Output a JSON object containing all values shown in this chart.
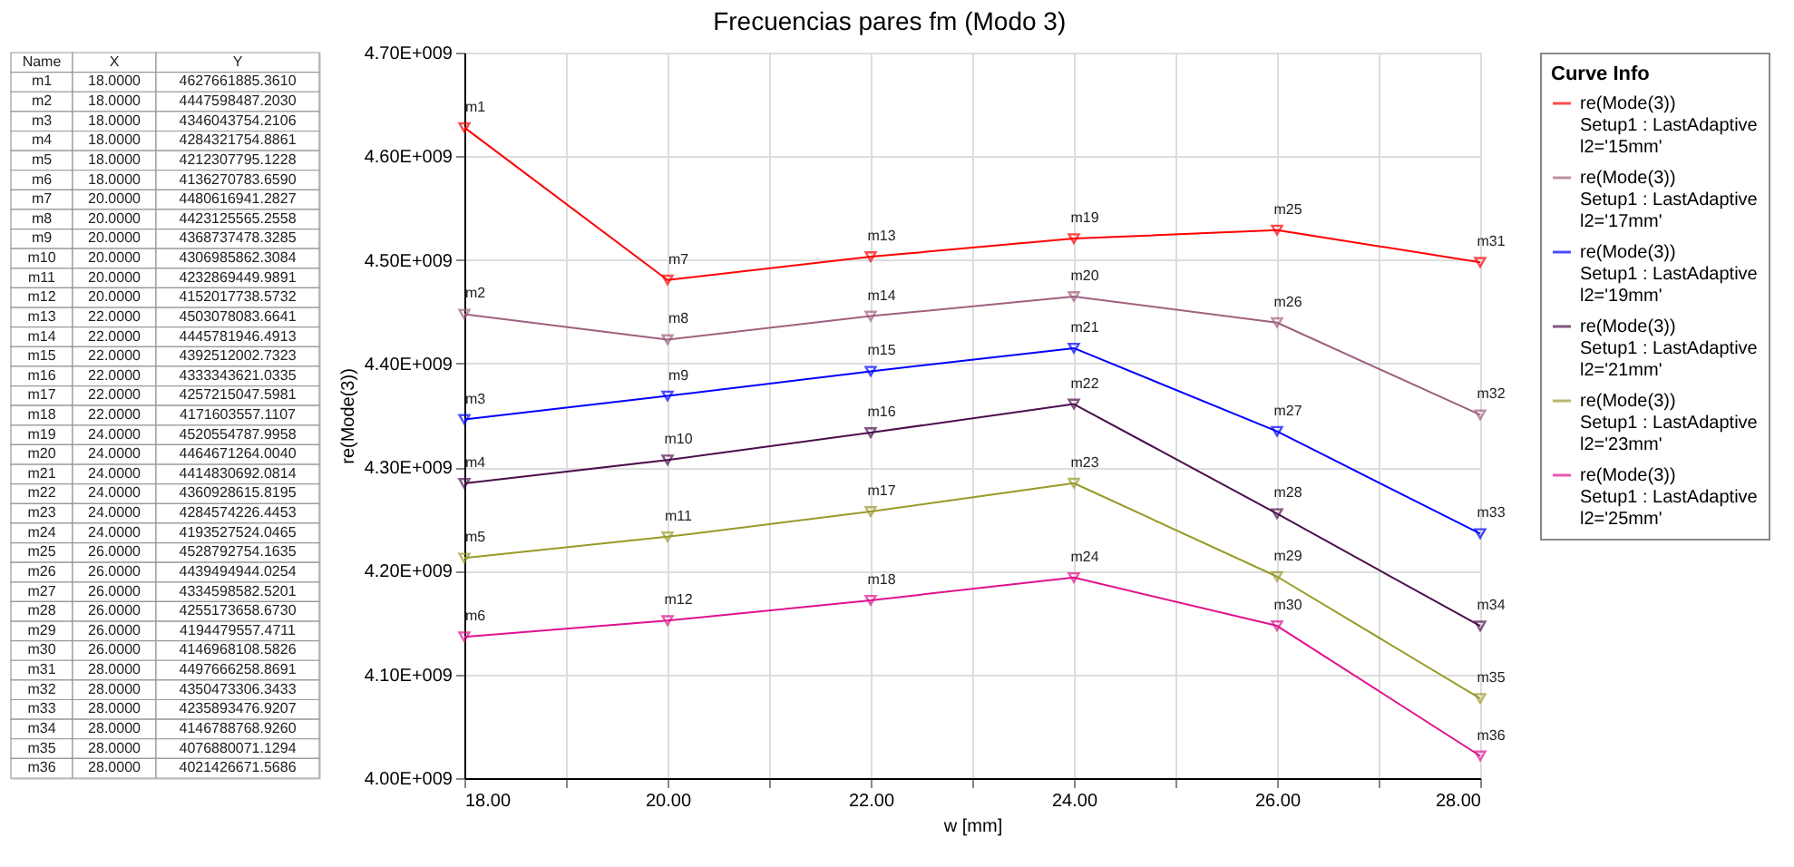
{
  "chart_data": {
    "type": "line",
    "title": "Frecuencias pares fm (Modo 3)",
    "xlabel": "w [mm]",
    "ylabel": "re(Mode(3))",
    "legend_title": "Curve Info",
    "x": [
      18,
      20,
      22,
      24,
      26,
      28
    ],
    "series": [
      {
        "name": "re(Mode(3))\nSetup1 : LastAdaptive\nl2='15mm'",
        "color": "#ff0000",
        "values": [
          4627661885.361,
          4480616941.2827,
          4503078083.6641,
          4520554787.9958,
          4528792754.1635,
          4497666258.8691
        ]
      },
      {
        "name": "re(Mode(3))\nSetup1 : LastAdaptive\nl2='17mm'",
        "color": "#a0607f",
        "values": [
          4447598487.203,
          4423125565.2558,
          4445781946.4913,
          4464671264.004,
          4439494944.0254,
          4350473306.3433
        ]
      },
      {
        "name": "re(Mode(3))\nSetup1 : LastAdaptive\nl2='19mm'",
        "color": "#0000ff",
        "values": [
          4346043754.2106,
          4368737478.3285,
          4392512002.7323,
          4414830692.0814,
          4334598582.5201,
          4235893476.9207
        ]
      },
      {
        "name": "re(Mode(3))\nSetup1 : LastAdaptive\nl2='21mm'",
        "color": "#4b0f4b",
        "values": [
          4284321754.8861,
          4306985862.3084,
          4333343621.0335,
          4360928615.8195,
          4255173658.673,
          4146788768.926
        ]
      },
      {
        "name": "re(Mode(3))\nSetup1 : LastAdaptive\nl2='23mm'",
        "color": "#9a9a2a",
        "values": [
          4212307795.1228,
          4232869449.9891,
          4257215047.5981,
          4284574226.4453,
          4194479557.4711,
          4076880071.1294
        ]
      },
      {
        "name": "re(Mode(3))\nSetup1 : LastAdaptive\nl2='25mm'",
        "color": "#e0128f",
        "values": [
          4136270783.659,
          4152017738.5732,
          4171603557.1107,
          4193527524.0465,
          4146968108.5826,
          4021426671.5686
        ]
      }
    ],
    "annotations": [
      {
        "text": "m1",
        "x": 18,
        "y": 4627661885.361
      },
      {
        "text": "m2",
        "x": 18,
        "y": 4447598487.203
      },
      {
        "text": "m3",
        "x": 18,
        "y": 4346043754.2106
      },
      {
        "text": "m4",
        "x": 18,
        "y": 4284321754.8861
      },
      {
        "text": "m5",
        "x": 18,
        "y": 4212307795.1228
      },
      {
        "text": "m6",
        "x": 18,
        "y": 4136270783.659
      },
      {
        "text": "m7",
        "x": 20,
        "y": 4480616941.2827
      },
      {
        "text": "m8",
        "x": 20,
        "y": 4423125565.2558
      },
      {
        "text": "m9",
        "x": 20,
        "y": 4368737478.3285
      },
      {
        "text": "m10",
        "x": 20,
        "y": 4306985862.3084
      },
      {
        "text": "m11",
        "x": 20,
        "y": 4232869449.9891
      },
      {
        "text": "m12",
        "x": 20,
        "y": 4152017738.5732
      },
      {
        "text": "m13",
        "x": 22,
        "y": 4503078083.6641
      },
      {
        "text": "m14",
        "x": 22,
        "y": 4445781946.4913
      },
      {
        "text": "m15",
        "x": 22,
        "y": 4392512002.7323
      },
      {
        "text": "m16",
        "x": 22,
        "y": 4333343621.0335
      },
      {
        "text": "m17",
        "x": 22,
        "y": 4257215047.5981
      },
      {
        "text": "m18",
        "x": 22,
        "y": 4171603557.1107
      },
      {
        "text": "m19",
        "x": 24,
        "y": 4520554787.9958
      },
      {
        "text": "m20",
        "x": 24,
        "y": 4464671264.004
      },
      {
        "text": "m21",
        "x": 24,
        "y": 4414830692.0814
      },
      {
        "text": "m22",
        "x": 24,
        "y": 4360928615.8195
      },
      {
        "text": "m23",
        "x": 24,
        "y": 4284574226.4453
      },
      {
        "text": "m24",
        "x": 24,
        "y": 4193527524.0465
      },
      {
        "text": "m25",
        "x": 26,
        "y": 4528792754.1635
      },
      {
        "text": "m26",
        "x": 26,
        "y": 4439494944.0254
      },
      {
        "text": "m27",
        "x": 26,
        "y": 4334598582.5201
      },
      {
        "text": "m28",
        "x": 26,
        "y": 4255173658.673
      },
      {
        "text": "m29",
        "x": 26,
        "y": 4194479557.4711
      },
      {
        "text": "m30",
        "x": 26,
        "y": 4146968108.5826
      },
      {
        "text": "m31",
        "x": 28,
        "y": 4497666258.8691
      },
      {
        "text": "m32",
        "x": 28,
        "y": 4350473306.3433
      },
      {
        "text": "m33",
        "x": 28,
        "y": 4235893476.9207
      },
      {
        "text": "m34",
        "x": 28,
        "y": 4146788768.926
      },
      {
        "text": "m35",
        "x": 28,
        "y": 4076880071.1294
      },
      {
        "text": "m36",
        "x": 28,
        "y": 4021426671.5686
      },
      "Name",
      "X",
      "Y",
      "m1",
      "18.0000",
      "4627661885.3610",
      "m2",
      "18.0000",
      "4447598487.2030",
      "m3",
      "18.0000",
      "4346043754.2106",
      "m4",
      "18.0000",
      "4284321754.8861",
      "m5",
      "18.0000",
      "4212307795.1228",
      "m6",
      "18.0000",
      "4136270783.6590",
      "m7",
      "20.0000",
      "4480616941.2827",
      "m8",
      "20.0000",
      "4423125565.2558",
      "m9",
      "20.0000",
      "4368737478.3285",
      "m10",
      "20.0000",
      "4306985862.3084",
      "m11",
      "20.0000",
      "4232869449.9891",
      "m12",
      "20.0000",
      "4152017738.5732",
      "m13",
      "22.0000",
      "4503078083.6641",
      "m14",
      "22.0000",
      "4445781946.4913",
      "m15",
      "22.0000",
      "4392512002.7323",
      "m16",
      "22.0000",
      "4333343621.0335",
      "m17",
      "22.0000",
      "4257215047.5981",
      "m18",
      "22.0000",
      "4171603557.1107",
      "m19",
      "24.0000",
      "4520554787.9958",
      "m20",
      "24.0000",
      "4464671264.0040",
      "m21",
      "24.0000",
      "4414830692.0814",
      "m22",
      "24.0000",
      "4360928615.8195",
      "m23",
      "24.0000",
      "4284574226.4453",
      "m24",
      "24.0000",
      "4193527524.0465",
      "m25",
      "26.0000",
      "4528792754.1635",
      "m26",
      "26.0000",
      "4439494944.0254",
      "m27",
      "26.0000",
      "4334598582.5201",
      "m28",
      "26.0000",
      "4255173658.6730",
      "m29",
      "26.0000",
      "4194479557.4711",
      "m30",
      "26.0000",
      "4146968108.5826",
      "m31",
      "28.0000",
      "4497666258.8691",
      "m32",
      "28.0000",
      "4350473306.3433",
      "m33",
      "28.0000",
      "4235893476.9207",
      "m34",
      "28.0000",
      "4146788768.9260",
      "m35",
      "28.0000",
      "4076880071.1294",
      "m36",
      "28.0000",
      "4021426671.5686"
    ],
    "xlim": [
      18,
      28
    ],
    "xticks": [
      {
        "value": 18,
        "label": "18.00"
      },
      {
        "value": 19,
        "label": null
      },
      {
        "value": 20,
        "label": "20.00"
      },
      {
        "value": 21,
        "label": null
      },
      {
        "value": 22,
        "label": "22.00"
      },
      {
        "value": 23,
        "label": null
      },
      {
        "value": 24,
        "label": "24.00"
      },
      {
        "value": 25,
        "label": null
      },
      {
        "value": 26,
        "label": "26.00"
      },
      {
        "value": 27,
        "label": null
      },
      {
        "value": 28,
        "label": "28.00"
      }
    ],
    "ylim": [
      4000000000,
      4700000000
    ],
    "yticks": [
      {
        "value": 4000000000,
        "label": "4.00E+009"
      },
      {
        "value": 4100000000,
        "label": "4.10E+009"
      },
      {
        "value": 4200000000,
        "label": "4.20E+009"
      },
      {
        "value": 4300000000,
        "label": "4.30E+009"
      },
      {
        "value": 4400000000,
        "label": "4.40E+009"
      },
      {
        "value": 4500000000,
        "label": "4.50E+009"
      },
      {
        "value": 4600000000,
        "label": "4.60E+009"
      },
      {
        "value": 4700000000,
        "label": "4.70E+009"
      }
    ],
    "grid": true,
    "legend": "top right",
    "marker": "triangle",
    "line_style": "solid"
  }
}
